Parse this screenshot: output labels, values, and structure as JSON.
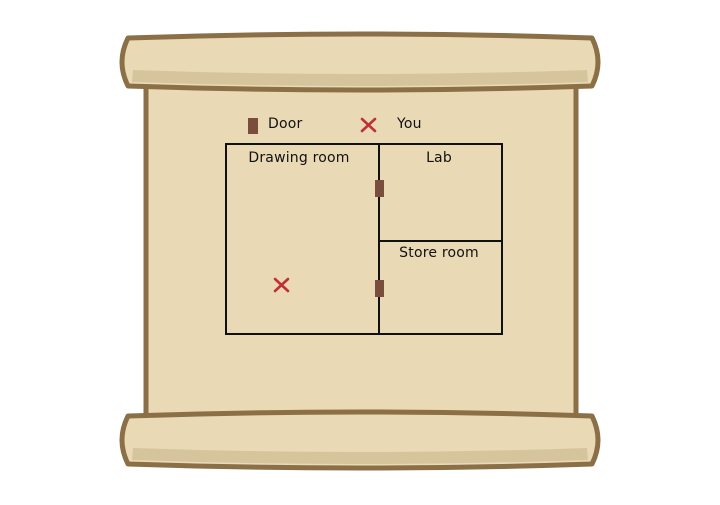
{
  "legend": {
    "door_label": "Door",
    "you_label": "You",
    "door_icon": "door-swatch",
    "you_icon": "x-mark"
  },
  "rooms": {
    "drawing_room": "Drawing room",
    "lab": "Lab",
    "store_room": "Store room"
  },
  "player_location": "Drawing room",
  "colors": {
    "parchment": "#EAD9B5",
    "roll": "#EAD9B5",
    "roll_shadow": "#D6C49D",
    "outline": "#8B6F47",
    "door": "#7A4E3C",
    "marker": "#C0303A",
    "walls": "#111111"
  }
}
